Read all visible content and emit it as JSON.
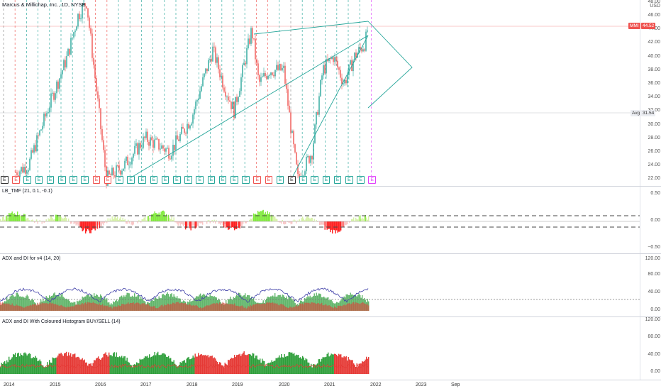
{
  "symbol": {
    "title": "Marcus & Millichap, Inc., 1D, NYSE",
    "currency": "USD"
  },
  "price_axis": [
    "48.00",
    "46.00",
    "44.00",
    "42.00",
    "40.00",
    "38.00",
    "36.00",
    "34.00",
    "32.00",
    "30.00",
    "28.00",
    "26.00",
    "24.00",
    "22.00"
  ],
  "tags": {
    "symbol_name": "MMI",
    "last_price": "44.52",
    "avg_name": "Avg",
    "avg_value": "31.54"
  },
  "colors": {
    "up": "#26a69a",
    "down": "#ef5350",
    "trendline": "#26a69a",
    "earnings_positive": "#26a69a",
    "earnings_negative": "#ef5350",
    "earnings_future": "#e040fb",
    "tmf_pos": "#7fea3b",
    "tmf_neg": "#ff1f1f",
    "adx_line": "#3f3fa8",
    "adx_green": "#2e9e3a",
    "adx_red": "#e53935"
  },
  "earnings_labels": [
    "E",
    "E",
    "E",
    "E",
    "E",
    "E",
    "E",
    "E",
    "E",
    "E",
    "E",
    "E",
    "E",
    "E",
    "E",
    "E",
    "E",
    "E",
    "E",
    "E",
    "E",
    "E",
    "E",
    "E",
    "E",
    "E",
    "E",
    "E",
    "E",
    "E",
    "E",
    "E",
    "E"
  ],
  "earnings_status": [
    "n",
    "d",
    "u",
    "u",
    "u",
    "u",
    "u",
    "u",
    "d",
    "d",
    "u",
    "u",
    "u",
    "u",
    "u",
    "u",
    "u",
    "u",
    "u",
    "u",
    "u",
    "u",
    "d",
    "d",
    "u",
    "n",
    "u",
    "u",
    "u",
    "u",
    "u",
    "u",
    "f"
  ],
  "indicators": {
    "tmf": {
      "title": "LB_TMF (21, 0.1, -0.1)",
      "axis": [
        "0.50",
        "0.00",
        "−0.50"
      ]
    },
    "adx1": {
      "title": "ADX and DI for v4 (14, 20)",
      "axis": [
        "120.00",
        "80.00",
        "40.00",
        "0.00"
      ]
    },
    "adx2": {
      "title": "ADX and DI With Coloured Histogram BUY/SELL (14)",
      "axis": [
        "120.00",
        "80.00",
        "40.00",
        "0.00"
      ]
    }
  },
  "time_axis": [
    "2014",
    "2015",
    "2016",
    "2017",
    "2018",
    "2019",
    "2020",
    "2021",
    "2022",
    "2023",
    "Sep"
  ]
}
